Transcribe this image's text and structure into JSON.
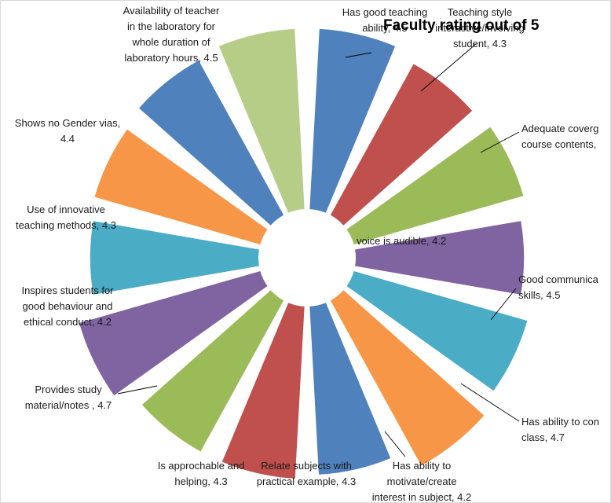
{
  "chart_data": {
    "type": "pie",
    "title": "Faculty rating out of 5",
    "value_scale_max": 5,
    "categories": [
      "Has good teaching ability",
      "Teaching style interactive/involving student",
      "Adequate covergae of course contents",
      "voice is audible",
      "Good communication skills",
      "Has ability to control class",
      "Has ability to motivate/create interest in subject",
      "Relate subjects with practical example",
      "Is approchable and helping",
      "Provides study material/notes",
      "Inspires students for good behaviour and ethical conduct",
      "Use of innovative teaching methods",
      "Shows no Gender vias",
      "Availability of teacher in the laboratory for whole duration of laboratory hours"
    ],
    "values": [
      4.5,
      4.3,
      4.4,
      4.2,
      4.5,
      4.7,
      4.2,
      4.3,
      4.3,
      4.7,
      4.2,
      4.3,
      4.4,
      4.5
    ],
    "colors": [
      "#4f81bd",
      "#c0504d",
      "#9bbb59",
      "#8064a2",
      "#4bacc6",
      "#f79646",
      "#4f81bd",
      "#c0504d",
      "#9bbb59",
      "#8064a2",
      "#4bacc6",
      "#f79646",
      "#4f81bd",
      "#b6cd87"
    ],
    "label_lines": [
      [
        "Has good teaching",
        "ability, 4.5"
      ],
      [
        "Teaching style",
        "interactive/involving",
        "student, 4.3"
      ],
      [
        "Adequate coverg",
        "course contents,"
      ],
      [
        "voice is audible, 4.2"
      ],
      [
        "Good communica",
        "skills, 4.5"
      ],
      [
        "Has ability to con",
        "class, 4.7"
      ],
      [
        "Has ability to",
        "motivate/create",
        "interest in subject, 4.2"
      ],
      [
        "Relate subjects with",
        "practical example, 4.3"
      ],
      [
        "Is approchable and",
        "helping, 4.3"
      ],
      [
        "Provides study",
        "material/notes , 4.7"
      ],
      [
        "Inspires students for",
        "good behaviour and",
        "ethical conduct, 4.2"
      ],
      [
        "Use of innovative",
        "teaching methods, 4.3"
      ],
      [
        "Shows no Gender vias,",
        "4.4"
      ],
      [
        "Availability of teacher",
        "in the laboratory for",
        "whole duration of",
        "laboratory hours, 4.5"
      ]
    ],
    "legend": "none"
  }
}
